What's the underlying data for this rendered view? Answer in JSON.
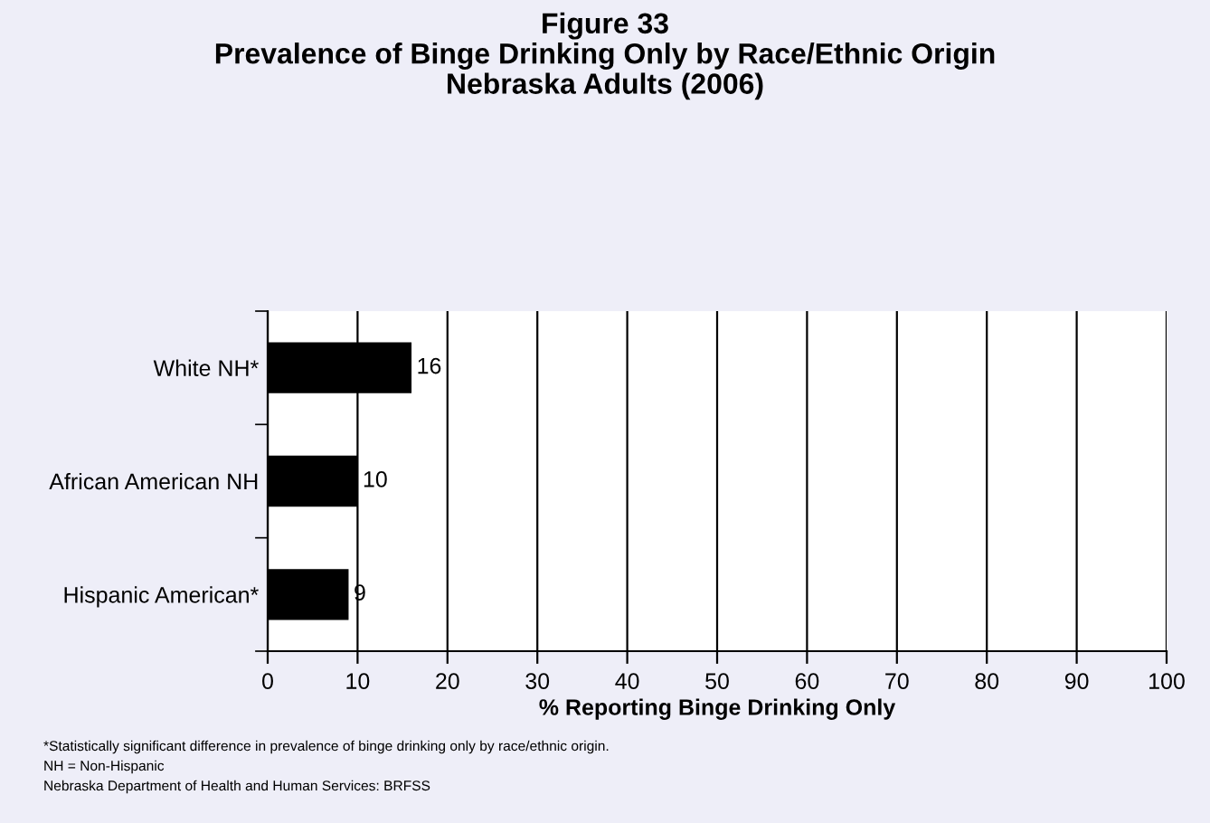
{
  "chart_data": {
    "type": "bar",
    "orientation": "horizontal",
    "title": "Figure 33\nPrevalence of Binge Drinking Only by Race/Ethnic Origin\nNebraska Adults (2006)",
    "xlabel": "% Reporting Binge Drinking Only",
    "categories": [
      "White NH*",
      "African American NH",
      "Hispanic American*"
    ],
    "values": [
      16,
      10,
      9
    ],
    "color": "#000000",
    "data_labels": true,
    "xlim": [
      0,
      100
    ],
    "xticks": [
      0,
      10,
      20,
      30,
      40,
      50,
      60,
      70,
      80,
      90,
      100
    ],
    "grid": "x",
    "annotations": [
      "*Statistically significant difference in prevalence of binge drinking only by race/ethnic origin.",
      "NH = Non-Hispanic",
      "Nebraska Department of Health and Human Services: BRFSS"
    ]
  }
}
